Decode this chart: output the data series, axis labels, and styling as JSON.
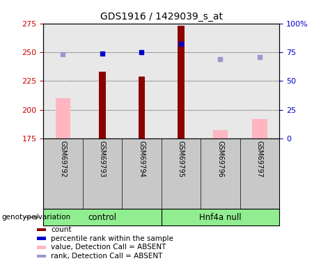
{
  "title": "GDS1916 / 1429039_s_at",
  "samples": [
    "GSM69792",
    "GSM69793",
    "GSM69794",
    "GSM69795",
    "GSM69796",
    "GSM69797"
  ],
  "ylim_left": [
    175,
    275
  ],
  "ylim_right": [
    0,
    100
  ],
  "yticks_left": [
    175,
    200,
    225,
    250,
    275
  ],
  "yticks_right": [
    0,
    25,
    50,
    75,
    100
  ],
  "bar_values": [
    null,
    233,
    229,
    273,
    null,
    null
  ],
  "bar_color": "#8B0000",
  "pink_values": [
    210,
    null,
    null,
    null,
    182,
    192
  ],
  "pink_color": "#FFB6C1",
  "blue_dot_values": [
    null,
    249,
    250,
    257,
    null,
    null
  ],
  "blue_dot_color": "#0000CD",
  "lavender_dot_values": [
    248,
    null,
    null,
    null,
    244,
    246
  ],
  "lavender_dot_color": "#9999CC",
  "ylabel_left_color": "#CC0000",
  "ylabel_right_color": "#0000CD",
  "bg_plot": "#E8E8E8",
  "bg_label": "#C8C8C8",
  "bg_group": "#90EE90",
  "legend_items": [
    {
      "label": "count",
      "color": "#8B0000"
    },
    {
      "label": "percentile rank within the sample",
      "color": "#0000CD"
    },
    {
      "label": "value, Detection Call = ABSENT",
      "color": "#FFB6C1"
    },
    {
      "label": "rank, Detection Call = ABSENT",
      "color": "#9999CC"
    }
  ],
  "control_label": "control",
  "hnf4a_label": "Hnf4a null",
  "genotype_label": "genotype/variation"
}
